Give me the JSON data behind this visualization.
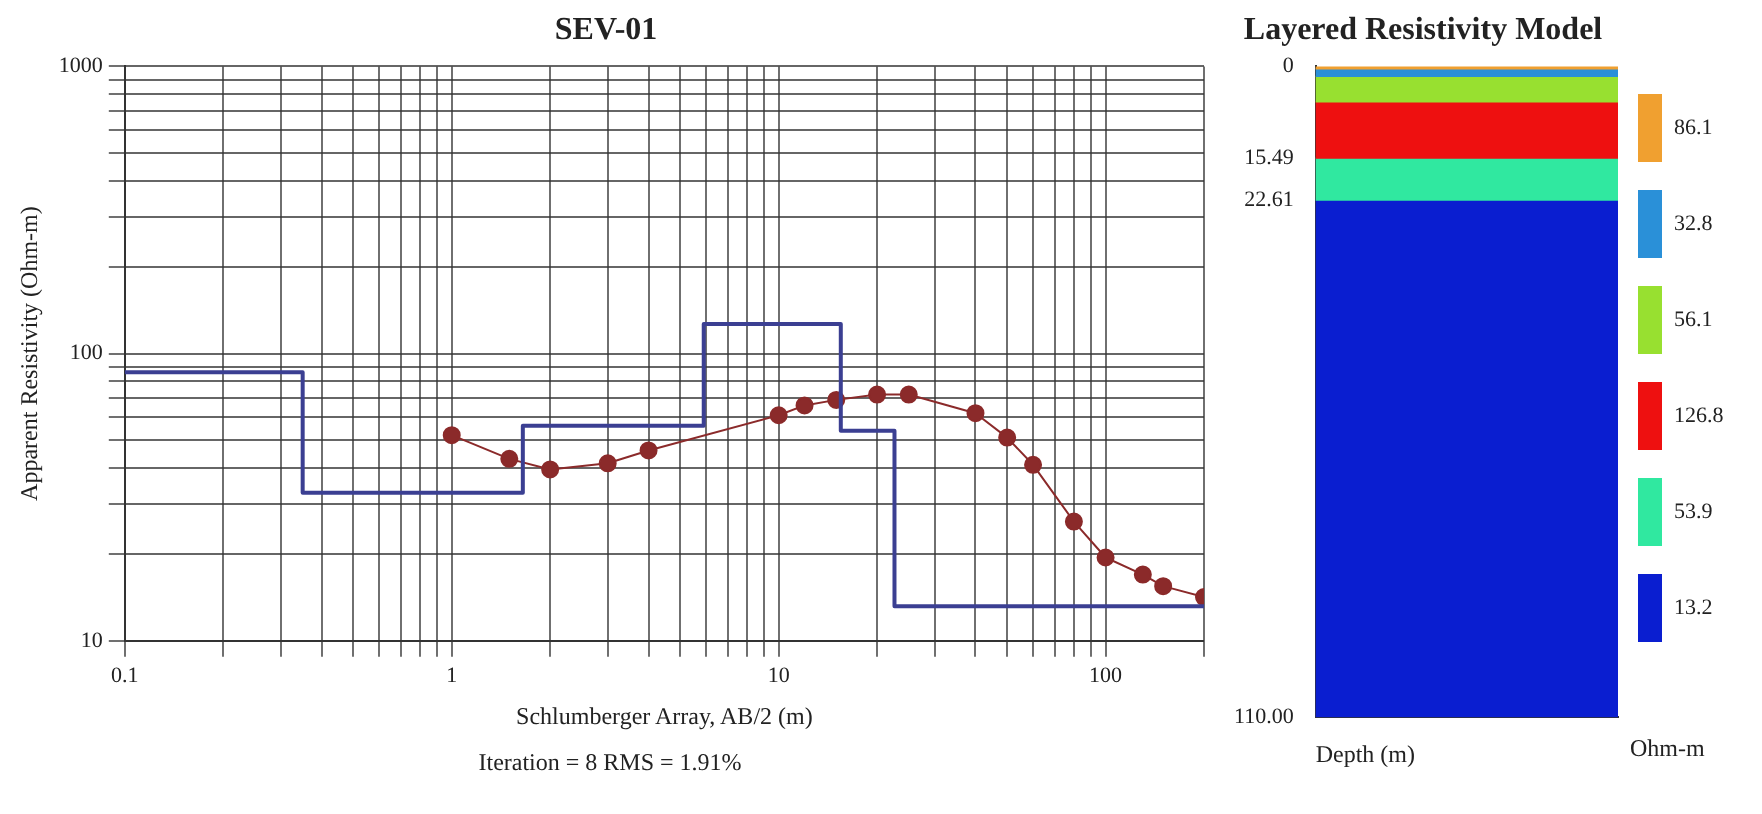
{
  "chart_data": [
    {
      "type": "line",
      "title": "SEV-01",
      "xlabel": "Schlumberger Array, AB/2 (m)",
      "ylabel": "Apparent Resistivity (Ohm-m)",
      "log": "xy",
      "grid": true,
      "legend": false,
      "xlim": [
        0.1,
        200
      ],
      "ylim": [
        10,
        1000
      ],
      "xticks": [
        0.1,
        {
          "value": 0.2,
          "label": null
        },
        {
          "value": 0.3,
          "label": null
        },
        {
          "value": 0.4,
          "label": null
        },
        {
          "value": 0.5,
          "label": null
        },
        {
          "value": 0.6,
          "label": null
        },
        {
          "value": 0.7,
          "label": null
        },
        {
          "value": 0.8,
          "label": null
        },
        {
          "value": 0.9,
          "label": null
        },
        1,
        {
          "value": 2,
          "label": null
        },
        {
          "value": 3,
          "label": null
        },
        {
          "value": 4,
          "label": null
        },
        {
          "value": 5,
          "label": null
        },
        {
          "value": 6,
          "label": null
        },
        {
          "value": 7,
          "label": null
        },
        {
          "value": 8,
          "label": null
        },
        {
          "value": 9,
          "label": null
        },
        10,
        {
          "value": 20,
          "label": null
        },
        {
          "value": 30,
          "label": null
        },
        {
          "value": 40,
          "label": null
        },
        {
          "value": 50,
          "label": null
        },
        {
          "value": 60,
          "label": null
        },
        {
          "value": 70,
          "label": null
        },
        {
          "value": 80,
          "label": null
        },
        {
          "value": 90,
          "label": null
        },
        100,
        {
          "value": 200,
          "label": null
        }
      ],
      "yticks": [
        10,
        {
          "value": 20,
          "label": null
        },
        {
          "value": 30,
          "label": null
        },
        {
          "value": 40,
          "label": null
        },
        {
          "value": 50,
          "label": null
        },
        {
          "value": 60,
          "label": null
        },
        {
          "value": 70,
          "label": null
        },
        {
          "value": 80,
          "label": null
        },
        {
          "value": 90,
          "label": null
        },
        100,
        {
          "value": 200,
          "label": null
        },
        {
          "value": 300,
          "label": null
        },
        {
          "value": 400,
          "label": null
        },
        {
          "value": 500,
          "label": null
        },
        {
          "value": 600,
          "label": null
        },
        {
          "value": 700,
          "label": null
        },
        {
          "value": 800,
          "label": null
        },
        {
          "value": 900,
          "label": null
        },
        1000
      ],
      "series": [
        {
          "type": "step",
          "color": "#3b3f92",
          "marker": "none",
          "x": [
            0.1,
            0.35,
            1.65,
            5.9,
            15.49,
            22.61,
            200
          ],
          "values": [
            86.1,
            32.8,
            56.1,
            126.8,
            53.9,
            13.2,
            13.2
          ]
        },
        {
          "type": "line",
          "color": "#8b2a2a",
          "marker": "circle",
          "x": [
            1,
            1.5,
            2,
            3,
            4,
            10,
            12,
            15,
            20,
            25,
            40,
            50,
            60,
            80,
            100,
            130,
            150,
            200
          ],
          "values": [
            52,
            43,
            39.5,
            41.5,
            46,
            61,
            66,
            69,
            72,
            72,
            62,
            51,
            41,
            26,
            19.5,
            17,
            15.5,
            14.2
          ]
        }
      ],
      "annotations": [
        "Iteration = 8   RMS = 1.91%"
      ]
    },
    {
      "type": "bar",
      "title": "Layered Resistivity Model",
      "xlabel": "Depth (m)",
      "legend_title": "Ohm-m",
      "stacked": true,
      "legend": "right",
      "tick_labels": "y",
      "grid": false,
      "categories": [
        null
      ],
      "ylim": [
        110,
        0
      ],
      "yticks": [
        0,
        15.49,
        22.61,
        {
          "value": 110,
          "label": "110.00"
        }
      ],
      "series": [
        {
          "name": "86.1",
          "color": "#f0a030",
          "values": [
            0.4
          ]
        },
        {
          "name": "32.8",
          "color": "#2a90d8",
          "values": [
            1.3
          ]
        },
        {
          "name": "56.1",
          "color": "#98e030",
          "values": [
            4.3
          ]
        },
        {
          "name": "126.8",
          "color": "#ee1010",
          "values": [
            9.49
          ]
        },
        {
          "name": "53.9",
          "color": "#30e8a0",
          "values": [
            7.12
          ]
        },
        {
          "name": "13.2",
          "color": "#0a1ed0",
          "values": [
            87.39
          ]
        }
      ]
    }
  ]
}
